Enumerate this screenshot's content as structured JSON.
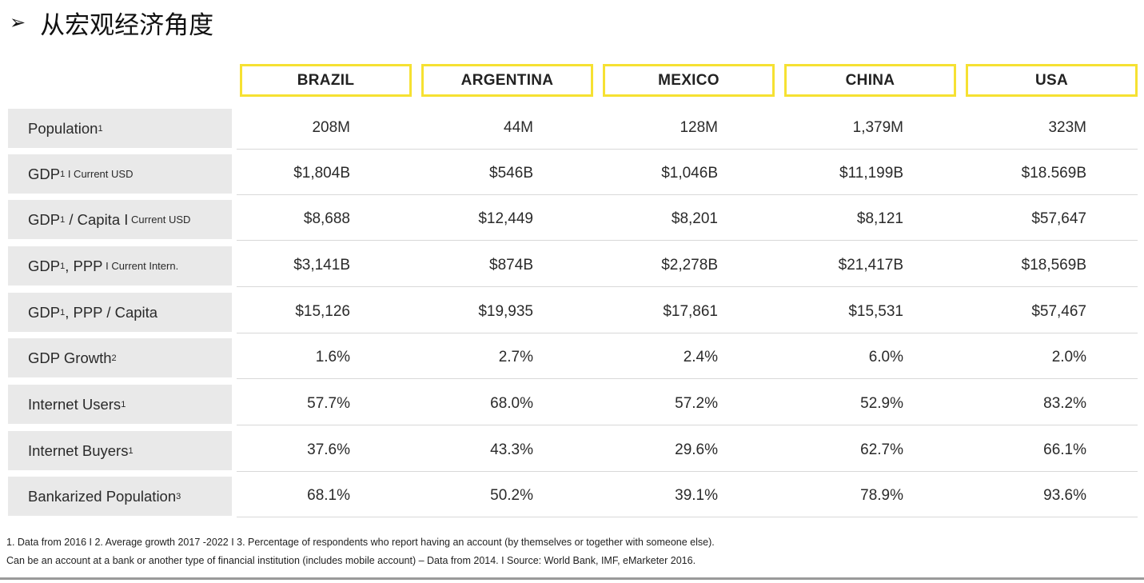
{
  "heading": {
    "arrow": "➢",
    "text": "从宏观经济角度"
  },
  "columns": [
    "BRAZIL",
    "ARGENTINA",
    "MEXICO",
    "CHINA",
    "USA"
  ],
  "rows": [
    {
      "label": "Population",
      "sup": "1",
      "suffix": "",
      "values": [
        "208M",
        "44M",
        "128M",
        "1,379M",
        "323M"
      ]
    },
    {
      "label": "GDP",
      "sup": "1",
      "suffix": " I Current USD",
      "values": [
        "$1,804B",
        "$546B",
        "$1,046B",
        "$11,199B",
        "$18.569B"
      ]
    },
    {
      "label": "GDP",
      "sup": "1",
      "mid": " / Capita I",
      "suffix": " Current USD",
      "values": [
        "$8,688",
        "$12,449",
        "$8,201",
        "$8,121",
        "$57,647"
      ]
    },
    {
      "label": "GDP",
      "sub": "1",
      "mid": ", PPP",
      "suffix": " I Current Intern.",
      "values": [
        "$3,141B",
        "$874B",
        "$2,278B",
        "$21,417B",
        "$18,569B"
      ]
    },
    {
      "label": "GDP",
      "sup": "1",
      "mid": ", PPP / Capita",
      "suffix": "",
      "values": [
        "$15,126",
        "$19,935",
        "$17,861",
        "$15,531",
        "$57,467"
      ]
    },
    {
      "label": "GDP Growth",
      "sup": "2",
      "suffix": "",
      "values": [
        "1.6%",
        "2.7%",
        "2.4%",
        "6.0%",
        "2.0%"
      ]
    },
    {
      "label": "Internet Users",
      "sup": "1",
      "suffix": "",
      "values": [
        "57.7%",
        "68.0%",
        "57.2%",
        "52.9%",
        "83.2%"
      ]
    },
    {
      "label": "Internet Buyers",
      "sup": "1",
      "suffix": "",
      "values": [
        "37.6%",
        "43.3%",
        "29.6%",
        "62.7%",
        "66.1%"
      ]
    },
    {
      "label": "Bankarized Population",
      "sup": "3",
      "suffix": "",
      "values": [
        "68.1%",
        "50.2%",
        "39.1%",
        "78.9%",
        "93.6%"
      ]
    }
  ],
  "footnotes": [
    "1. Data from 2016 I   2. Average growth 2017 -2022   I  3. Percentage of respondents who report having an account (by themselves or together with someone else).",
    "Can be an account at a bank or another type of financial institution (includes mobile account) – Data from 2014.  I  Source: World Bank, IMF, eMarketer 2016."
  ],
  "colors": {
    "header_border": "#f6e132",
    "label_bg": "#e9e9e9",
    "row_rule": "#d8d8d8"
  }
}
